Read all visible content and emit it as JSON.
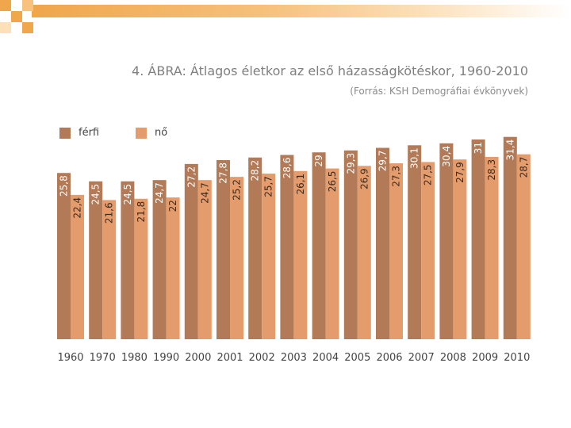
{
  "slide": {
    "title": "4. ÁBRA: Átlagos életkor az első házasságkötéskor, 1960-2010",
    "source": "(Forrás: KSH Demográfiai évkönyvek)"
  },
  "colors": {
    "ferfi": "#b27a57",
    "no": "#e49c6c",
    "band": "#f0a64a",
    "text": "#7f7f7f"
  },
  "chart_data": {
    "type": "bar",
    "categories": [
      "1960",
      "1970",
      "1980",
      "1990",
      "2000",
      "2001",
      "2002",
      "2003",
      "2004",
      "2005",
      "2006",
      "2007",
      "2008",
      "2009",
      "2010"
    ],
    "series": [
      {
        "name": "férfi",
        "values": [
          25.8,
          24.5,
          24.5,
          24.7,
          27.2,
          27.8,
          28.2,
          28.6,
          29,
          29.3,
          29.7,
          30.1,
          30.4,
          31,
          31.4
        ]
      },
      {
        "name": "nő",
        "values": [
          22.4,
          21.6,
          21.8,
          22,
          24.7,
          25.2,
          25.7,
          26.1,
          26.5,
          26.9,
          27.3,
          27.5,
          27.9,
          28.3,
          28.7
        ]
      }
    ],
    "value_labels": [
      [
        "25,8",
        "24,5",
        "24,5",
        "24,7",
        "27,2",
        "27,8",
        "28,2",
        "28,6",
        "29",
        "29,3",
        "29,7",
        "30,1",
        "30,4",
        "31",
        "31,4"
      ],
      [
        "22,4",
        "21,6",
        "21,8",
        "22",
        "24,7",
        "25,2",
        "25,7",
        "26,1",
        "26,5",
        "26,9",
        "27,3",
        "27,5",
        "27,9",
        "28,3",
        "28,7"
      ]
    ],
    "title": "4. ÁBRA: Átlagos életkor az első házasságkötéskor, 1960-2010",
    "xlabel": "",
    "ylabel": "",
    "legend_position": "top-left",
    "grid": false
  }
}
